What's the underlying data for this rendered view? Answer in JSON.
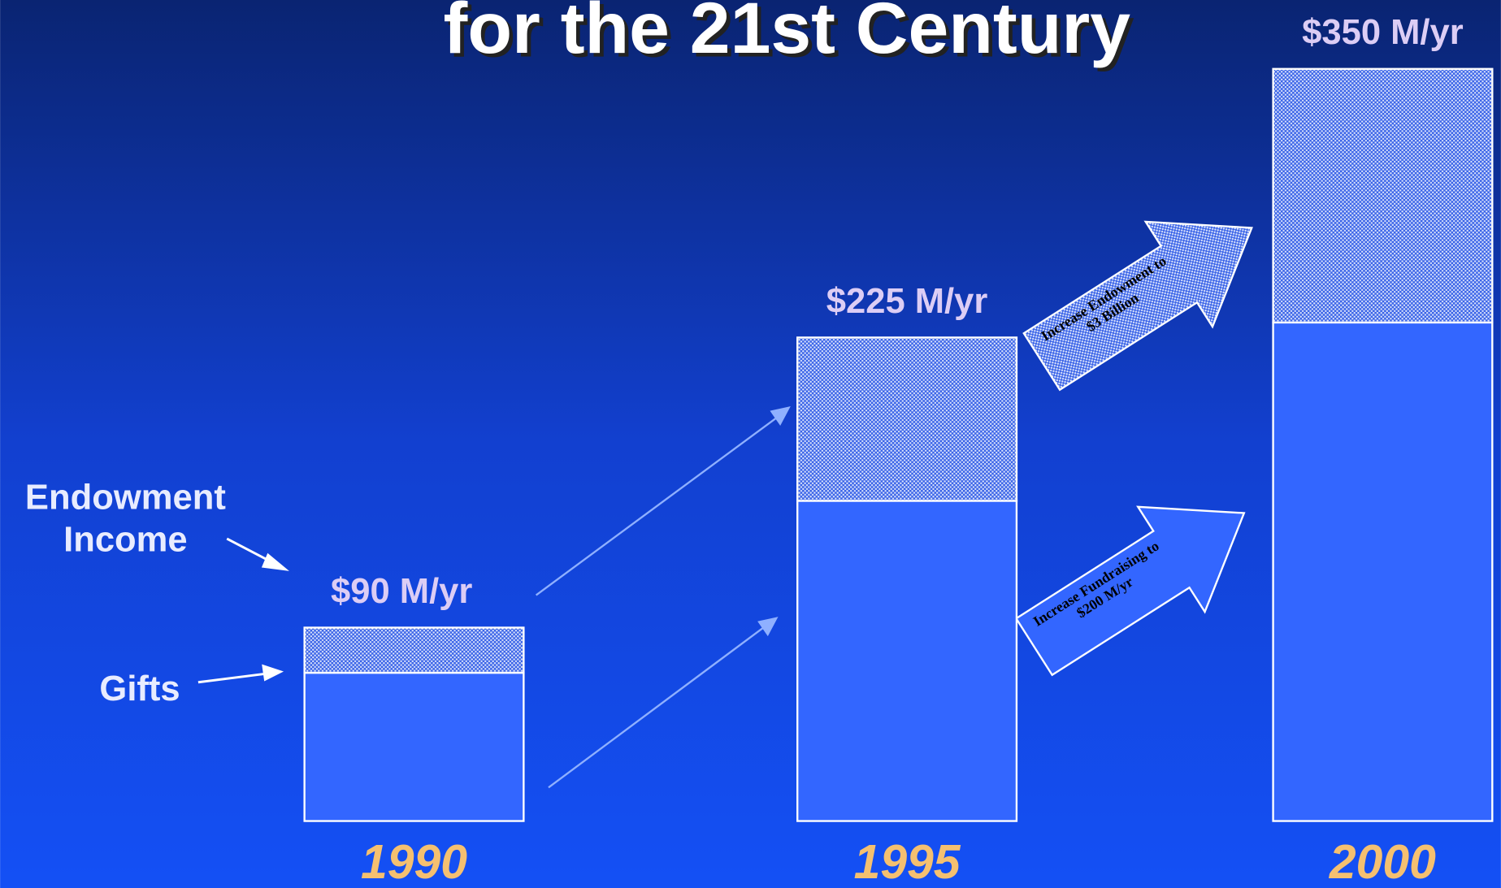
{
  "chart_data": {
    "type": "stacked-bar",
    "title": "for the 21st Century",
    "categories": [
      "1990",
      "1995",
      "2000"
    ],
    "series": [
      {
        "name": "Gifts",
        "color": "#3366ff",
        "values": [
          69,
          149,
          232
        ]
      },
      {
        "name": "Endowment Income",
        "color": "#c8d4f4",
        "values": [
          21,
          76,
          118
        ]
      }
    ],
    "totals": [
      90,
      225,
      350
    ],
    "total_labels": [
      "$90 M/yr",
      "$225 M/yr",
      "$350 M/yr"
    ],
    "annotations": [
      "Increase Endowment to $3 Billion",
      "Increase Fundraising to $200 M/yr"
    ]
  }
}
